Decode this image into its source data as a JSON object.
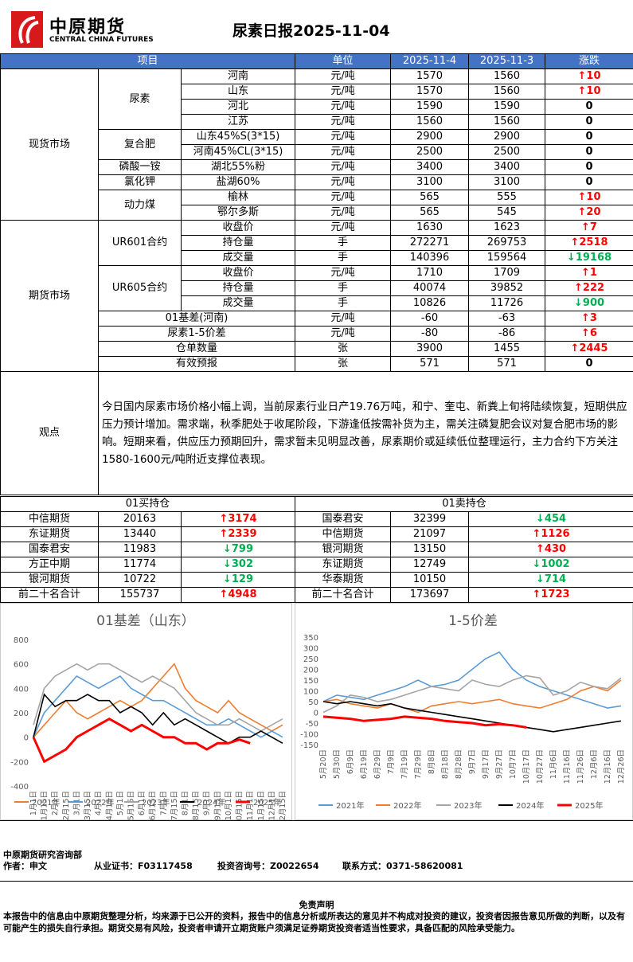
{
  "header": {
    "brand_cn": "中原期货",
    "brand_en": "CENTRAL CHINA FUTURES",
    "title": "尿素日报2025-11-04"
  },
  "table": {
    "columns": [
      "项目",
      "单位",
      "2025-11-4",
      "2025-11-3",
      "涨跌"
    ],
    "sections": [
      {
        "name": "现货市场",
        "groups": [
          {
            "name": "尿素",
            "rows": [
              {
                "item": "河南",
                "unit": "元/吨",
                "v1": 1570,
                "v2": 1560,
                "chg": "↑10"
              },
              {
                "item": "山东",
                "unit": "元/吨",
                "v1": 1570,
                "v2": 1560,
                "chg": "↑10"
              },
              {
                "item": "河北",
                "unit": "元/吨",
                "v1": 1590,
                "v2": 1590,
                "chg": "0"
              },
              {
                "item": "江苏",
                "unit": "元/吨",
                "v1": 1560,
                "v2": 1560,
                "chg": "0"
              }
            ]
          },
          {
            "name": "复合肥",
            "rows": [
              {
                "item": "山东45%S(3*15)",
                "unit": "元/吨",
                "v1": 2900,
                "v2": 2900,
                "chg": "0"
              },
              {
                "item": "河南45%CL(3*15)",
                "unit": "元/吨",
                "v1": 2500,
                "v2": 2500,
                "chg": "0"
              }
            ]
          },
          {
            "name": "磷酸一铵",
            "rows": [
              {
                "item": "湖北55%粉",
                "unit": "元/吨",
                "v1": 3400,
                "v2": 3400,
                "chg": "0"
              }
            ]
          },
          {
            "name": "氯化钾",
            "rows": [
              {
                "item": "盐湖60%",
                "unit": "元/吨",
                "v1": 3100,
                "v2": 3100,
                "chg": "0"
              }
            ]
          },
          {
            "name": "动力煤",
            "rows": [
              {
                "item": "榆林",
                "unit": "元/吨",
                "v1": 565,
                "v2": 555,
                "chg": "↑10"
              },
              {
                "item": "鄂尔多斯",
                "unit": "元/吨",
                "v1": 565,
                "v2": 545,
                "chg": "↑20"
              }
            ]
          }
        ]
      },
      {
        "name": "期货市场",
        "groups": [
          {
            "name": "UR601合约",
            "rows": [
              {
                "item": "收盘价",
                "unit": "元/吨",
                "v1": 1630,
                "v2": 1623,
                "chg": "↑7"
              },
              {
                "item": "持仓量",
                "unit": "手",
                "v1": 272271,
                "v2": 269753,
                "chg": "↑2518"
              },
              {
                "item": "成交量",
                "unit": "手",
                "v1": 140396,
                "v2": 159564,
                "chg": "↓19168"
              }
            ]
          },
          {
            "name": "UR605合约",
            "rows": [
              {
                "item": "收盘价",
                "unit": "元/吨",
                "v1": 1710,
                "v2": 1709,
                "chg": "↑1"
              },
              {
                "item": "持仓量",
                "unit": "手",
                "v1": 40074,
                "v2": 39852,
                "chg": "↑222"
              },
              {
                "item": "成交量",
                "unit": "手",
                "v1": 10826,
                "v2": 11726,
                "chg": "↓900"
              }
            ]
          },
          {
            "name": "01基差(河南)",
            "rows": [
              {
                "unit": "元/吨",
                "v1": -60,
                "v2": -63,
                "chg": "↑3"
              }
            ]
          },
          {
            "name": "尿素1-5价差",
            "rows": [
              {
                "unit": "元/吨",
                "v1": -80,
                "v2": -86,
                "chg": "↑6"
              }
            ]
          },
          {
            "name": "仓单数量",
            "rows": [
              {
                "unit": "张",
                "v1": 3900,
                "v2": 1455,
                "chg": "↑2445"
              }
            ]
          },
          {
            "name": "有效预报",
            "rows": [
              {
                "unit": "张",
                "v1": 571,
                "v2": 571,
                "chg": "0"
              }
            ]
          }
        ]
      }
    ]
  },
  "opinion": {
    "label": "观点",
    "text": "今日国内尿素市场价格小幅上调，当前尿素行业日产19.76万吨，和宁、奎屯、新粪上旬将陆续恢复，短期供应压力预计增加。需求端，秋季肥处于收尾阶段，下游逢低按需补货为主，需关注磷复肥会议对复合肥市场的影响。短期来看，供应压力预期回升，需求暂未见明显改善，尿素期价或延续低位整理运行，主力合约下方关注1580-1600元/吨附近支撑位表现。"
  },
  "positions": {
    "buy": {
      "title": "01买持仓",
      "rows": [
        [
          "中信期货",
          20163,
          "↑3174"
        ],
        [
          "东证期货",
          13440,
          "↑2339"
        ],
        [
          "国泰君安",
          11983,
          "↓799"
        ],
        [
          "方正中期",
          11774,
          "↓302"
        ],
        [
          "银河期货",
          10722,
          "↓129"
        ],
        [
          "前二十名合计",
          155737,
          "↑4948"
        ]
      ]
    },
    "sell": {
      "title": "01卖持仓",
      "rows": [
        [
          "国泰君安",
          32399,
          "↓454"
        ],
        [
          "中信期货",
          21097,
          "↑1126"
        ],
        [
          "银河期货",
          13150,
          "↑430"
        ],
        [
          "东证期货",
          12749,
          "↓1002"
        ],
        [
          "华泰期货",
          10150,
          "↓714"
        ],
        [
          "前二十名合计",
          173697,
          "↑1723"
        ]
      ]
    }
  },
  "chart_data": [
    {
      "type": "line",
      "title": "01基差（山东）",
      "categories": [
        "1月1日",
        "1月15日",
        "2月1日",
        "2月15日",
        "3月1日",
        "3月15日",
        "4月1日",
        "4月15日",
        "5月1日",
        "5月15日",
        "6月1日",
        "6月15日",
        "7月1日",
        "7月15日",
        "8月1日",
        "8月15日",
        "9月1日",
        "9月15日",
        "10月1日",
        "10月15日",
        "11月1日",
        "11月15日",
        "12月1日",
        "12月15日"
      ],
      "ylim": [
        -400,
        800
      ],
      "yticks": [
        -400,
        -200,
        0,
        200,
        400,
        600,
        800
      ],
      "series": [
        {
          "name": "2021年",
          "color": "#ed7d31",
          "values": [
            0,
            100,
            200,
            300,
            200,
            150,
            200,
            250,
            300,
            250,
            300,
            400,
            500,
            600,
            400,
            300,
            250,
            200,
            300,
            200,
            150,
            100,
            50,
            100
          ]
        },
        {
          "name": "2022年",
          "color": "#5b9bd5",
          "values": [
            0,
            200,
            300,
            400,
            500,
            450,
            400,
            450,
            500,
            400,
            350,
            300,
            300,
            250,
            200,
            150,
            100,
            100,
            150,
            100,
            50,
            0,
            50,
            0
          ]
        },
        {
          "name": "2023年",
          "color": "#a5a5a5",
          "values": [
            100,
            400,
            500,
            550,
            600,
            550,
            600,
            600,
            550,
            500,
            450,
            500,
            450,
            400,
            300,
            200,
            150,
            100,
            100,
            150,
            100,
            50,
            100,
            150
          ]
        },
        {
          "name": "2024年",
          "color": "#000000",
          "values": [
            0,
            350,
            250,
            300,
            300,
            350,
            300,
            300,
            200,
            250,
            200,
            100,
            200,
            100,
            150,
            100,
            50,
            0,
            -50,
            0,
            0,
            50,
            0,
            -50
          ]
        },
        {
          "name": "2025年",
          "color": "#ff0000",
          "values": [
            0,
            -200,
            -150,
            -100,
            0,
            50,
            100,
            150,
            100,
            50,
            100,
            50,
            0,
            0,
            -50,
            -50,
            -100,
            -50,
            -50,
            -20,
            -50,
            null,
            null,
            null
          ]
        }
      ]
    },
    {
      "type": "line",
      "title": "1-5价差",
      "categories": [
        "5月20日",
        "5月30日",
        "6月9日",
        "6月19日",
        "6月29日",
        "7月9日",
        "7月19日",
        "7月29日",
        "8月8日",
        "8月18日",
        "8月28日",
        "9月7日",
        "9月17日",
        "9月27日",
        "10月7日",
        "10月17日",
        "10月27日",
        "11月6日",
        "11月16日",
        "11月26日",
        "12月6日",
        "12月16日",
        "12月26日"
      ],
      "ylim": [
        -150,
        350
      ],
      "yticks": [
        -150,
        -100,
        -50,
        0,
        50,
        100,
        150,
        200,
        250,
        300,
        350
      ],
      "series": [
        {
          "name": "2021年",
          "color": "#5b9bd5",
          "values": [
            50,
            80,
            70,
            60,
            80,
            100,
            120,
            150,
            120,
            130,
            150,
            200,
            250,
            280,
            200,
            150,
            120,
            100,
            80,
            60,
            40,
            20,
            30
          ]
        },
        {
          "name": "2022年",
          "color": "#ed7d31",
          "values": [
            50,
            60,
            40,
            30,
            20,
            40,
            20,
            0,
            30,
            40,
            50,
            40,
            50,
            60,
            40,
            30,
            20,
            40,
            60,
            100,
            120,
            100,
            150
          ]
        },
        {
          "name": "2023年",
          "color": "#a5a5a5",
          "values": [
            0,
            30,
            80,
            70,
            50,
            60,
            80,
            100,
            120,
            110,
            100,
            150,
            130,
            120,
            150,
            170,
            160,
            80,
            100,
            140,
            120,
            110,
            160
          ]
        },
        {
          "name": "2024年",
          "color": "#000000",
          "values": [
            50,
            40,
            50,
            40,
            30,
            40,
            20,
            10,
            0,
            -10,
            -20,
            -30,
            -40,
            -50,
            -60,
            -70,
            -80,
            -90,
            -80,
            -70,
            -60,
            -50,
            -40
          ]
        },
        {
          "name": "2025年",
          "color": "#ff0000",
          "values": [
            -20,
            -25,
            -30,
            -40,
            -35,
            -30,
            -20,
            -25,
            -30,
            -40,
            -45,
            -50,
            -60,
            -55,
            -60,
            -70,
            null,
            null,
            null,
            null,
            null,
            null,
            null
          ]
        }
      ]
    }
  ],
  "footer": {
    "dept": "中原期货研究咨询部",
    "author": "作者：申文",
    "cert": "从业证书：F03117458",
    "advisory": "投资咨询号：Z0022654",
    "contact": "联系方式：0371-58620081"
  },
  "disclaimer": {
    "title": "免责声明",
    "text": "本报告中的信息由中原期货整理分析，均来源于已公开的资料，报告中的信息分析或所表达的意见并不构成对投资的建议，投资者因报告意见所做的判断，以及有可能产生的损失自行承担。期货交易有风险，投资者申请开立期货账户须满足证券期货投资者适当性要求，具备匹配的风险承受能力。"
  }
}
